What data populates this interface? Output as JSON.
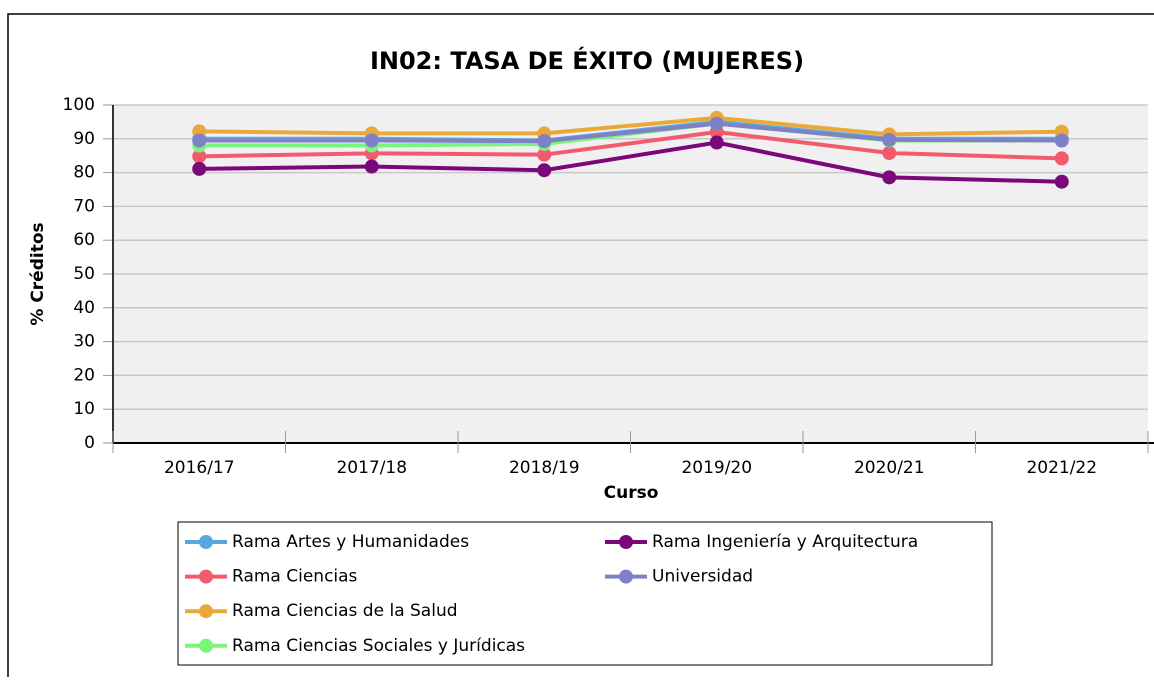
{
  "chart_data": {
    "type": "line",
    "title": "IN02: TASA DE ÉXITO (MUJERES)",
    "x_label": "Curso",
    "y_label": "% Créditos",
    "categories": [
      "2016/17",
      "2017/18",
      "2018/19",
      "2019/20",
      "2020/21",
      "2021/22"
    ],
    "series": [
      {
        "name": "Rama Artes y Humanidades",
        "color": "#5aa7de",
        "values": [
          90,
          90,
          89.5,
          95,
          90,
          90
        ]
      },
      {
        "name": "Rama Ciencias",
        "color": "#f25a6e",
        "values": [
          84.8,
          85.7,
          85.3,
          92,
          85.8,
          84.2
        ]
      },
      {
        "name": "Rama Ciencias de la Salud",
        "color": "#e8a93a",
        "values": [
          92.2,
          91.6,
          91.6,
          96.2,
          91.3,
          92.1
        ]
      },
      {
        "name": "Rama Ciencias Sociales y Jurídicas",
        "color": "#7af57a",
        "values": [
          88,
          88,
          88.5,
          94.5,
          89.5,
          89.5
        ]
      },
      {
        "name": "Rama Ingeniería y Arquitectura",
        "color": "#7b087b",
        "values": [
          81.1,
          81.8,
          80.7,
          88.9,
          78.6,
          77.3
        ]
      },
      {
        "name": "Universidad",
        "color": "#8080c8",
        "values": [
          89.5,
          89.5,
          89.3,
          94.5,
          89.7,
          89.5
        ]
      }
    ],
    "ylim": [
      0,
      100
    ],
    "yticks": [
      0,
      10,
      20,
      30,
      40,
      50,
      60,
      70,
      80,
      90,
      100
    ],
    "grid": true
  }
}
